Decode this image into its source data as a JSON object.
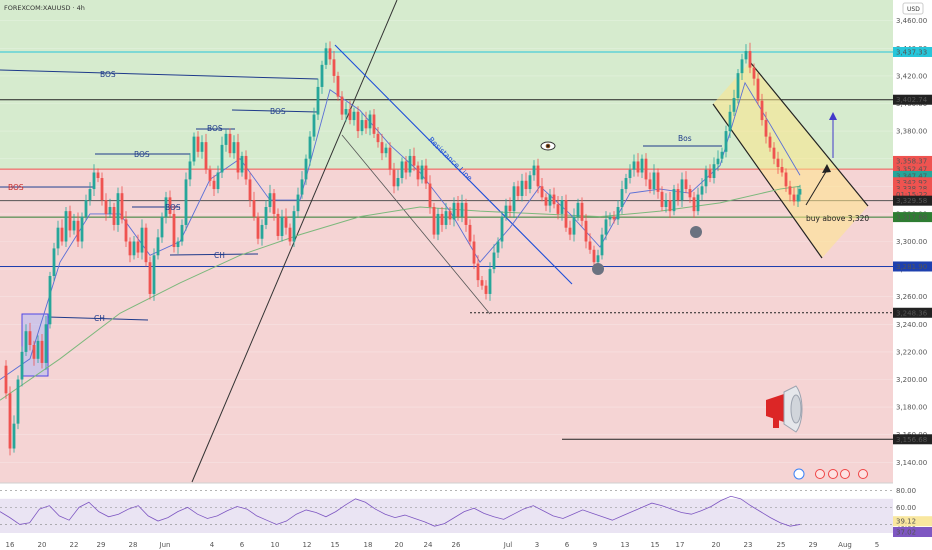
{
  "header": {
    "symbol": "FOREXCOM:XAUUSD · 4h",
    "currency": "USD"
  },
  "colors": {
    "up": "#26a69a",
    "down": "#ef5350",
    "bos": "#1e3a8a",
    "support": "#2e7d32",
    "resistance": "#c62828",
    "trend": "#1d4ed8",
    "band_green": "#d6ebce",
    "band_red": "#f5d4d4",
    "rsi_bg": "#d9cdea"
  },
  "chart_data": {
    "type": "candlestick",
    "symbol": "FOREXCOM:XAUUSD",
    "timeframe": "4h",
    "ylim": [
      3125,
      3475
    ],
    "x_ticks": [
      "16",
      "20",
      "22",
      "29",
      "28",
      "Jun",
      "4",
      "6",
      "10",
      "12",
      "15",
      "18",
      "20",
      "24",
      "26",
      "Jul",
      "3",
      "6",
      "9",
      "13",
      "15",
      "17",
      "20",
      "23",
      "25",
      "29",
      "Aug",
      "5"
    ],
    "y_ticks": [
      3460,
      3440,
      3420,
      3400,
      3380,
      3360,
      3340,
      3320,
      3300,
      3280,
      3260,
      3240,
      3220,
      3200,
      3180,
      3160,
      3140
    ],
    "y_tick_labels": [
      "3,460.00",
      "3,440.00",
      "3,420.00",
      "3,400.00",
      "3,380.00",
      "3,360.00",
      "3,340.00",
      "3,320.00",
      "3,300.00",
      "3,280.00",
      "3,260.00",
      "3,240.00",
      "3,220.00",
      "3,200.00",
      "3,180.00",
      "3,160.00",
      "3,140.00"
    ],
    "price_labels": [
      {
        "value": 3437.33,
        "label": "3,437.33",
        "color": "#26c6da"
      },
      {
        "value": 3402.74,
        "label": "3,402.74",
        "color": "#222222"
      },
      {
        "value": 3358.37,
        "label": "3,358.37",
        "color": "#ef5350"
      },
      {
        "value": 3352.47,
        "label": "3,352.47",
        "color": "#ef5350"
      },
      {
        "value": 3347.47,
        "label": "3,347.47",
        "color": "#26a69a"
      },
      {
        "value": 3342.92,
        "label": "3,342.92",
        "color": "#ef5350"
      },
      {
        "value": 3338.28,
        "label": "3,338.28",
        "color": "#ef5350"
      },
      {
        "value": 3334.2,
        "label": "01:15:22",
        "color": "#ef5350"
      },
      {
        "value": 3329.58,
        "label": "3,329.58",
        "color": "#222222"
      },
      {
        "value": 3317.68,
        "label": "3,317.68",
        "color": "#2e7d32"
      },
      {
        "value": 3281.9,
        "label": "3,281.90",
        "color": "#1e40af"
      },
      {
        "value": 3248.36,
        "label": "3,248.36",
        "color": "#222222"
      },
      {
        "value": 3156.68,
        "label": "3,156.68",
        "color": "#222222"
      }
    ],
    "levels": [
      {
        "value": 3437.33,
        "color": "#26c6da",
        "style": "solid"
      },
      {
        "value": 3402.74,
        "color": "#222222",
        "style": "solid"
      },
      {
        "value": 3352.47,
        "color": "#ef5350",
        "style": "solid"
      },
      {
        "value": 3329.58,
        "color": "#555555",
        "style": "solid"
      },
      {
        "value": 3317.68,
        "color": "#2e7d32",
        "style": "solid"
      },
      {
        "value": 3281.9,
        "color": "#1e40af",
        "style": "solid"
      },
      {
        "value": 3248.36,
        "color": "#222222",
        "style": "dotted"
      },
      {
        "value": 3156.68,
        "color": "#222222",
        "style": "solid"
      }
    ],
    "price_path": [
      [
        0,
        3210
      ],
      [
        6,
        3190
      ],
      [
        10,
        3150
      ],
      [
        14,
        3168
      ],
      [
        18,
        3200
      ],
      [
        22,
        3220
      ],
      [
        26,
        3235
      ],
      [
        30,
        3225
      ],
      [
        34,
        3215
      ],
      [
        38,
        3228
      ],
      [
        42,
        3212
      ],
      [
        46,
        3240
      ],
      [
        50,
        3275
      ],
      [
        54,
        3295
      ],
      [
        58,
        3310
      ],
      [
        62,
        3300
      ],
      [
        66,
        3322
      ],
      [
        70,
        3308
      ],
      [
        74,
        3315
      ],
      [
        78,
        3300
      ],
      [
        82,
        3318
      ],
      [
        86,
        3330
      ],
      [
        90,
        3338
      ],
      [
        94,
        3350
      ],
      [
        98,
        3346
      ],
      [
        102,
        3330
      ],
      [
        106,
        3320
      ],
      [
        110,
        3325
      ],
      [
        114,
        3312
      ],
      [
        118,
        3335
      ],
      [
        122,
        3316
      ],
      [
        126,
        3300
      ],
      [
        130,
        3290
      ],
      [
        134,
        3300
      ],
      [
        138,
        3292
      ],
      [
        142,
        3310
      ],
      [
        146,
        3285
      ],
      [
        150,
        3262
      ],
      [
        154,
        3290
      ],
      [
        158,
        3303
      ],
      [
        162,
        3318
      ],
      [
        166,
        3332
      ],
      [
        170,
        3320
      ],
      [
        174,
        3296
      ],
      [
        178,
        3300
      ],
      [
        182,
        3312
      ],
      [
        186,
        3345
      ],
      [
        190,
        3358
      ],
      [
        194,
        3376
      ],
      [
        198,
        3365
      ],
      [
        202,
        3372
      ],
      [
        206,
        3352
      ],
      [
        210,
        3344
      ],
      [
        214,
        3338
      ],
      [
        218,
        3350
      ],
      [
        222,
        3370
      ],
      [
        226,
        3378
      ],
      [
        230,
        3364
      ],
      [
        234,
        3372
      ],
      [
        238,
        3350
      ],
      [
        242,
        3362
      ],
      [
        246,
        3345
      ],
      [
        250,
        3330
      ],
      [
        254,
        3318
      ],
      [
        258,
        3302
      ],
      [
        262,
        3312
      ],
      [
        266,
        3325
      ],
      [
        270,
        3335
      ],
      [
        274,
        3320
      ],
      [
        278,
        3304
      ],
      [
        282,
        3318
      ],
      [
        286,
        3310
      ],
      [
        290,
        3300
      ],
      [
        294,
        3322
      ],
      [
        298,
        3334
      ],
      [
        302,
        3345
      ],
      [
        306,
        3360
      ],
      [
        310,
        3376
      ],
      [
        314,
        3392
      ],
      [
        318,
        3412
      ],
      [
        322,
        3428
      ],
      [
        326,
        3440
      ],
      [
        330,
        3432
      ],
      [
        334,
        3420
      ],
      [
        338,
        3405
      ],
      [
        342,
        3392
      ],
      [
        346,
        3396
      ],
      [
        350,
        3388
      ],
      [
        354,
        3394
      ],
      [
        358,
        3380
      ],
      [
        362,
        3388
      ],
      [
        366,
        3382
      ],
      [
        370,
        3392
      ],
      [
        374,
        3378
      ],
      [
        378,
        3372
      ],
      [
        382,
        3364
      ],
      [
        386,
        3368
      ],
      [
        390,
        3352
      ],
      [
        394,
        3340
      ],
      [
        398,
        3346
      ],
      [
        402,
        3358
      ],
      [
        406,
        3350
      ],
      [
        410,
        3362
      ],
      [
        414,
        3355
      ],
      [
        418,
        3345
      ],
      [
        422,
        3355
      ],
      [
        426,
        3342
      ],
      [
        430,
        3325
      ],
      [
        434,
        3305
      ],
      [
        438,
        3320
      ],
      [
        442,
        3312
      ],
      [
        446,
        3322
      ],
      [
        450,
        3316
      ],
      [
        454,
        3328
      ],
      [
        458,
        3318
      ],
      [
        462,
        3328
      ],
      [
        466,
        3312
      ],
      [
        470,
        3300
      ],
      [
        474,
        3284
      ],
      [
        478,
        3272
      ],
      [
        482,
        3268
      ],
      [
        486,
        3262
      ],
      [
        490,
        3280
      ],
      [
        494,
        3292
      ],
      [
        498,
        3300
      ],
      [
        502,
        3318
      ],
      [
        506,
        3326
      ],
      [
        510,
        3322
      ],
      [
        514,
        3340
      ],
      [
        518,
        3333
      ],
      [
        522,
        3344
      ],
      [
        526,
        3338
      ],
      [
        530,
        3348
      ],
      [
        534,
        3355
      ],
      [
        538,
        3340
      ],
      [
        542,
        3332
      ],
      [
        546,
        3326
      ],
      [
        550,
        3334
      ],
      [
        554,
        3327
      ],
      [
        558,
        3320
      ],
      [
        562,
        3330
      ],
      [
        566,
        3310
      ],
      [
        570,
        3305
      ],
      [
        574,
        3318
      ],
      [
        578,
        3328
      ],
      [
        582,
        3315
      ],
      [
        586,
        3300
      ],
      [
        590,
        3294
      ],
      [
        594,
        3285
      ],
      [
        598,
        3290
      ],
      [
        602,
        3305
      ],
      [
        606,
        3316
      ],
      [
        610,
        3318
      ],
      [
        614,
        3316
      ],
      [
        618,
        3325
      ],
      [
        622,
        3338
      ],
      [
        626,
        3346
      ],
      [
        630,
        3352
      ],
      [
        634,
        3358
      ],
      [
        638,
        3350
      ],
      [
        642,
        3360
      ],
      [
        646,
        3345
      ],
      [
        650,
        3338
      ],
      [
        654,
        3350
      ],
      [
        658,
        3336
      ],
      [
        662,
        3325
      ],
      [
        666,
        3330
      ],
      [
        670,
        3322
      ],
      [
        674,
        3338
      ],
      [
        678,
        3330
      ],
      [
        682,
        3345
      ],
      [
        686,
        3338
      ],
      [
        690,
        3332
      ],
      [
        694,
        3322
      ],
      [
        698,
        3334
      ],
      [
        702,
        3340
      ],
      [
        706,
        3352
      ],
      [
        710,
        3346
      ],
      [
        714,
        3356
      ],
      [
        718,
        3360
      ],
      [
        722,
        3365
      ],
      [
        726,
        3380
      ],
      [
        730,
        3394
      ],
      [
        734,
        3404
      ],
      [
        738,
        3422
      ],
      [
        742,
        3432
      ],
      [
        746,
        3438
      ],
      [
        750,
        3426
      ],
      [
        754,
        3418
      ],
      [
        758,
        3402
      ],
      [
        762,
        3388
      ],
      [
        766,
        3376
      ],
      [
        770,
        3368
      ],
      [
        774,
        3360
      ],
      [
        778,
        3354
      ],
      [
        782,
        3350
      ],
      [
        786,
        3340
      ],
      [
        790,
        3334
      ],
      [
        794,
        3329
      ],
      [
        798,
        3334
      ],
      [
        800,
        3338
      ]
    ],
    "ma_fast": [
      [
        0,
        3200
      ],
      [
        30,
        3215
      ],
      [
        60,
        3285
      ],
      [
        90,
        3320
      ],
      [
        120,
        3320
      ],
      [
        150,
        3290
      ],
      [
        180,
        3300
      ],
      [
        210,
        3345
      ],
      [
        240,
        3360
      ],
      [
        270,
        3330
      ],
      [
        300,
        3330
      ],
      [
        330,
        3410
      ],
      [
        360,
        3395
      ],
      [
        390,
        3370
      ],
      [
        420,
        3350
      ],
      [
        450,
        3322
      ],
      [
        480,
        3285
      ],
      [
        510,
        3310
      ],
      [
        540,
        3340
      ],
      [
        570,
        3320
      ],
      [
        600,
        3296
      ],
      [
        630,
        3335
      ],
      [
        660,
        3338
      ],
      [
        690,
        3335
      ],
      [
        720,
        3355
      ],
      [
        745,
        3415
      ],
      [
        770,
        3385
      ],
      [
        800,
        3348
      ]
    ],
    "ma_slow": [
      [
        0,
        3185
      ],
      [
        60,
        3215
      ],
      [
        120,
        3248
      ],
      [
        180,
        3270
      ],
      [
        240,
        3290
      ],
      [
        300,
        3305
      ],
      [
        360,
        3318
      ],
      [
        420,
        3325
      ],
      [
        480,
        3322
      ],
      [
        540,
        3320
      ],
      [
        600,
        3318
      ],
      [
        660,
        3322
      ],
      [
        720,
        3328
      ],
      [
        780,
        3338
      ],
      [
        800,
        3340
      ]
    ],
    "annotations": [
      "BOS",
      "BOS",
      "BOS",
      "BOS",
      "BOS",
      "BOS",
      "CH",
      "CH",
      "Bos",
      "Resistance Line",
      "buy above 3,320"
    ],
    "rsi": {
      "ylim": [
        30,
        85
      ],
      "ticks": [
        80,
        60,
        40
      ],
      "tick_labels": [
        "80.00",
        "60.00",
        "40.00"
      ],
      "labels": [
        {
          "value": 39.12,
          "label": "39.12"
        },
        {
          "value": 37.02,
          "label": "37.02"
        }
      ],
      "values": [
        55,
        48,
        40,
        42,
        58,
        62,
        50,
        45,
        60,
        66,
        55,
        49,
        52,
        58,
        62,
        50,
        44,
        48,
        55,
        60,
        52,
        47,
        50,
        56,
        61,
        58,
        50,
        45,
        40,
        44,
        52,
        57,
        54,
        49,
        55,
        63,
        70,
        66,
        58,
        52,
        48,
        51,
        47,
        43,
        38,
        41,
        48,
        55,
        59,
        53,
        49,
        46,
        52,
        58,
        62,
        56,
        50,
        47,
        52,
        57,
        53,
        49,
        45,
        50,
        55,
        60,
        65,
        62,
        58,
        54,
        52,
        56,
        61,
        68,
        73,
        70,
        62,
        55,
        48,
        42,
        38,
        40
      ]
    }
  }
}
